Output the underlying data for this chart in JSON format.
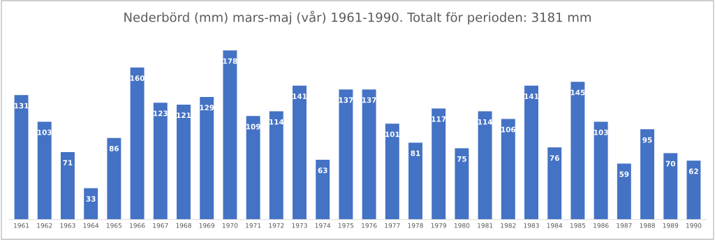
{
  "chart_data": {
    "type": "bar",
    "title": "Nederbörd (mm) mars-maj (vår) 1961-1990. Totalt för perioden: 3181 mm",
    "categories": [
      "1961",
      "1962",
      "1963",
      "1964",
      "1965",
      "1966",
      "1967",
      "1968",
      "1969",
      "1970",
      "1971",
      "1972",
      "1973",
      "1974",
      "1975",
      "1976",
      "1977",
      "1978",
      "1979",
      "1980",
      "1981",
      "1982",
      "1983",
      "1984",
      "1985",
      "1986",
      "1987",
      "1988",
      "1989",
      "1990"
    ],
    "values": [
      131,
      103,
      71,
      33,
      86,
      160,
      123,
      121,
      129,
      178,
      109,
      114,
      141,
      63,
      137,
      137,
      101,
      81,
      117,
      75,
      114,
      106,
      141,
      76,
      145,
      103,
      59,
      95,
      70,
      62
    ],
    "color": "#4472c4",
    "data_labels": true,
    "grid": false,
    "legend": false,
    "tick_labels": "x"
  }
}
